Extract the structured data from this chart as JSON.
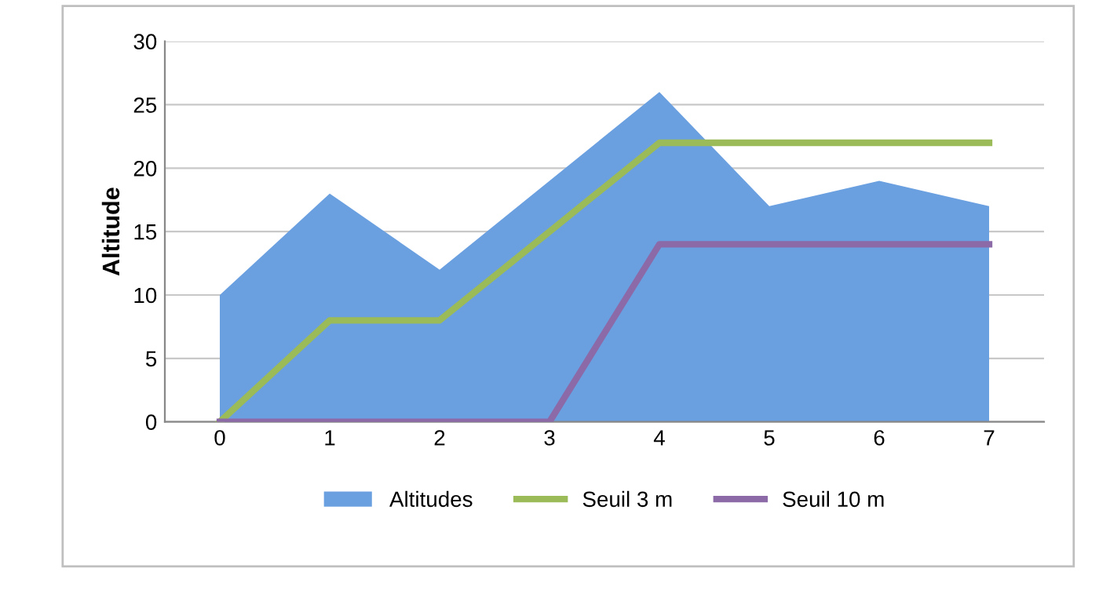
{
  "chart_data": {
    "type": "area",
    "ylabel": "Altitude",
    "categories": [
      "0",
      "1",
      "2",
      "3",
      "4",
      "5",
      "6",
      "7"
    ],
    "series": [
      {
        "name": "Altitudes",
        "color": "#6a9fe0",
        "values": [
          10,
          18,
          12,
          19,
          26,
          17,
          19,
          17
        ]
      },
      {
        "name": "Seuil 3 m",
        "type": "line",
        "color": "#9bbb59",
        "values": [
          0,
          8,
          8,
          15,
          22,
          22,
          22,
          22
        ]
      },
      {
        "name": "Seuil 10 m",
        "type": "line",
        "color": "#8c6aa8",
        "values": [
          0,
          0,
          0,
          0,
          14,
          14,
          14,
          14
        ]
      }
    ],
    "ylim": [
      0,
      30
    ],
    "yticks": [
      0,
      5,
      10,
      15,
      20,
      25,
      30
    ],
    "grid": "y",
    "legend": "bottom"
  }
}
